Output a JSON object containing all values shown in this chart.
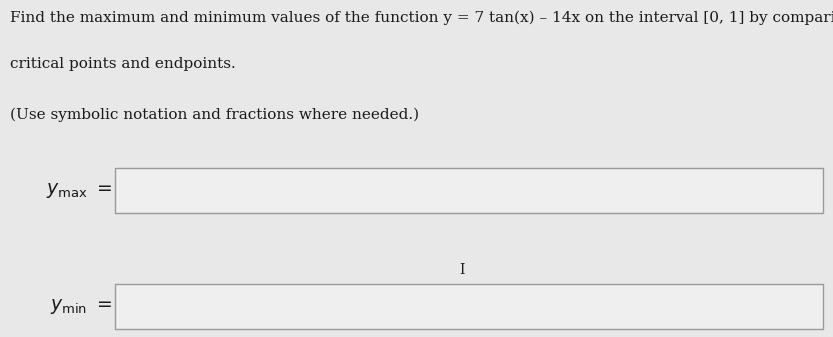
{
  "background_color": "#e8e8e8",
  "text_color": "#1a1a1a",
  "line1": "Find the maximum and minimum values of the function y = 7 tan(x) – 14x on the interval [0, 1] by comparing values at the",
  "line2": "critical points and endpoints.",
  "line3": "(Use symbolic notation and fractions where needed.)",
  "box_facecolor": "#efefef",
  "box_edgecolor": "#999999",
  "cursor_symbol": "I",
  "font_size_main": 11.0,
  "font_size_label": 13.5,
  "fig_width": 8.33,
  "fig_height": 3.37,
  "dpi": 100
}
